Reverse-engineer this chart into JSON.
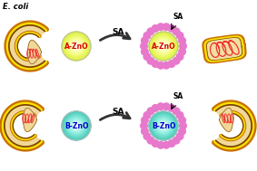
{
  "bg_color": "#ffffff",
  "ecoli_label": "E. coli",
  "sa_label": "SA",
  "a_zno_label": "A-ZnO",
  "b_zno_label": "B-ZnO",
  "a_zno_colors": [
    "#ffffff",
    "#f8ff90",
    "#d8ee30"
  ],
  "b_zno_colors": [
    "#ffffff",
    "#90eee0",
    "#40c8b4"
  ],
  "particle_color": "#e878cc",
  "body_color": "#f0d898",
  "wall_color_outer": "#c87000",
  "wall_color_mid": "#f8e000",
  "wall_color_inner": "#7a4000",
  "dna_color": "#ee3333",
  "dead_body_color": "#f2dfa0",
  "arrow_color": "#333333",
  "arrow_fill": "#888888"
}
